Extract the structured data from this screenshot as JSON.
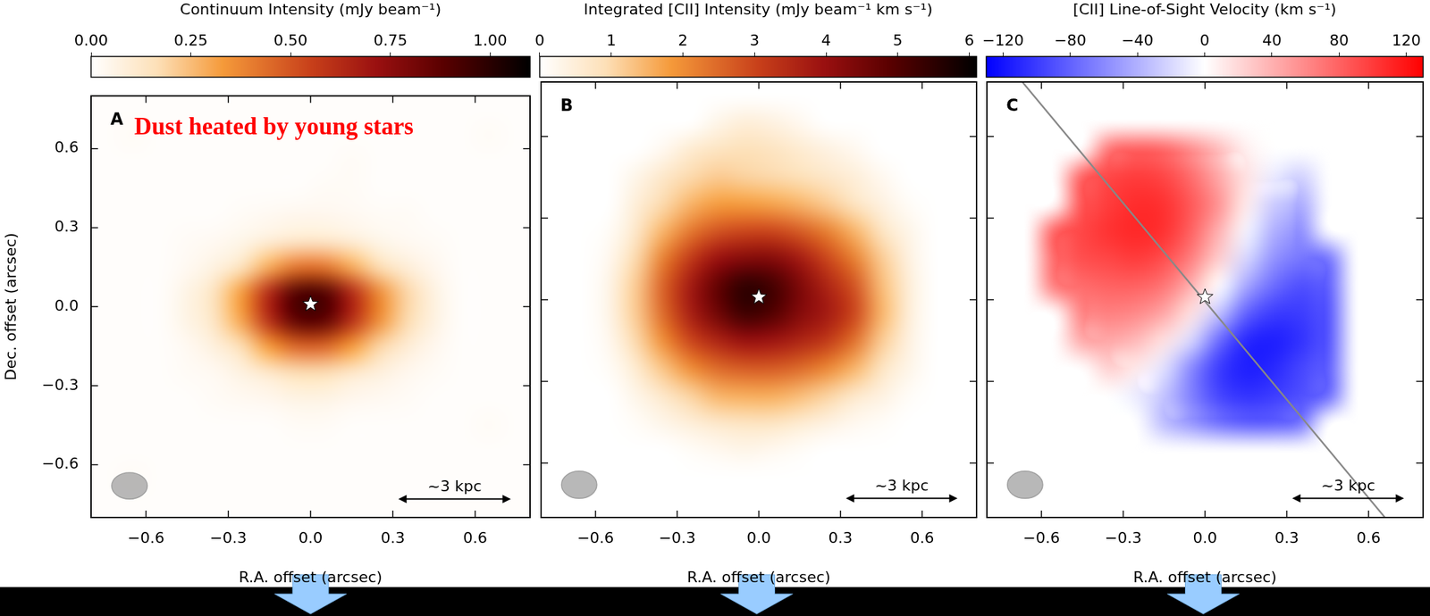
{
  "chart_data": [
    {
      "type": "heatmap",
      "panel": "A",
      "annotation": "Dust heated by young stars",
      "xlabel": "R.A. offset (arcsec)",
      "ylabel": "Dec. offset (arcsec)",
      "xlim": [
        -0.8,
        0.8
      ],
      "ylim": [
        -0.8,
        0.8
      ],
      "xticks": [
        {
          "value": -0.6,
          "label": "−0.6"
        },
        {
          "value": -0.3,
          "label": "−0.3"
        },
        {
          "value": 0,
          "label": "0.0"
        },
        0.3,
        0.6
      ],
      "yticks": [
        {
          "value": -0.6,
          "label": "−0.6"
        },
        {
          "value": -0.3,
          "label": "−0.3"
        },
        {
          "value": 0,
          "label": "0.0"
        },
        0.3,
        0.6
      ],
      "color": "afmhot_r",
      "colorbar": {
        "title": "Continuum Intensity (mJy beam⁻¹)",
        "range": [
          0,
          1.1
        ],
        "ticks": [
          {
            "value": 0,
            "label": "0.00"
          },
          {
            "value": 0.25,
            "label": "0.25"
          },
          {
            "value": 0.5,
            "label": "0.50"
          },
          {
            "value": 0.75,
            "label": "0.75"
          },
          {
            "value": 1,
            "label": "1.00"
          }
        ]
      },
      "x": [
        -0.75,
        -0.65,
        -0.55,
        -0.45,
        -0.35,
        -0.25,
        -0.15,
        -0.05,
        0.05,
        0.15,
        0.25,
        0.35,
        0.45,
        0.55,
        0.65,
        0.75
      ],
      "y": [
        0.75,
        0.65,
        0.55,
        0.45,
        0.35,
        0.25,
        0.15,
        0.05,
        -0.05,
        -0.15,
        -0.25,
        -0.35,
        -0.45,
        -0.55,
        -0.65,
        -0.75
      ],
      "values": [
        [
          0.01,
          0.01,
          0.01,
          0.01,
          0.01,
          0.01,
          0.01,
          0.01,
          0.01,
          0.01,
          0.01,
          0.01,
          0.01,
          0.01,
          0.01,
          0.01
        ],
        [
          0.01,
          0.02,
          0.01,
          0.01,
          0.01,
          0.01,
          0.01,
          0.01,
          0.01,
          0.01,
          0.01,
          0.01,
          0.01,
          0.01,
          0.02,
          0.01
        ],
        [
          0.01,
          0.01,
          0.01,
          0.01,
          0.01,
          0.01,
          0.01,
          0.01,
          0.01,
          0.02,
          0.01,
          0.01,
          0.01,
          0.01,
          0.01,
          0.01
        ],
        [
          0.01,
          0.01,
          0.01,
          0.01,
          0.01,
          0.01,
          0.01,
          0.01,
          0.02,
          0.02,
          0.01,
          0.01,
          0.01,
          0.01,
          0.01,
          0.01
        ],
        [
          0.01,
          0.01,
          0.01,
          0.01,
          0.01,
          0.02,
          0.03,
          0.04,
          0.04,
          0.03,
          0.02,
          0.02,
          0.01,
          0.01,
          0.01,
          0.01
        ],
        [
          0.01,
          0.01,
          0.01,
          0.02,
          0.03,
          0.05,
          0.09,
          0.12,
          0.12,
          0.09,
          0.05,
          0.03,
          0.02,
          0.01,
          0.01,
          0.01
        ],
        [
          0.01,
          0.01,
          0.01,
          0.03,
          0.07,
          0.15,
          0.29,
          0.42,
          0.42,
          0.29,
          0.17,
          0.09,
          0.04,
          0.01,
          0.01,
          0.01
        ],
        [
          0.01,
          0.01,
          0.01,
          0.06,
          0.15,
          0.33,
          0.64,
          0.91,
          0.91,
          0.64,
          0.37,
          0.19,
          0.07,
          0.01,
          0.01,
          0.01
        ],
        [
          0.01,
          0.01,
          0.01,
          0.06,
          0.14,
          0.31,
          0.62,
          0.88,
          0.88,
          0.62,
          0.36,
          0.18,
          0.07,
          0.01,
          0.01,
          0.01
        ],
        [
          0.01,
          0.01,
          0.01,
          0.03,
          0.08,
          0.17,
          0.33,
          0.46,
          0.46,
          0.33,
          0.19,
          0.1,
          0.04,
          0.01,
          0.01,
          0.01
        ],
        [
          0.01,
          0.01,
          0.01,
          0.02,
          0.03,
          0.07,
          0.12,
          0.17,
          0.17,
          0.12,
          0.08,
          0.04,
          0.02,
          0.01,
          0.01,
          0.01
        ],
        [
          0.01,
          0.01,
          0.01,
          0.01,
          0.02,
          0.03,
          0.04,
          0.06,
          0.06,
          0.04,
          0.03,
          0.02,
          0.01,
          0.01,
          0.01,
          0.01
        ],
        [
          0.01,
          0.01,
          0.01,
          0.01,
          0.01,
          0.01,
          0.01,
          0.02,
          0.02,
          0.01,
          0.01,
          0.01,
          0.01,
          0.01,
          0.02,
          0.01
        ],
        [
          0.01,
          0.01,
          0.01,
          0.01,
          0.01,
          0.01,
          0.01,
          0.01,
          0.01,
          0.01,
          0.01,
          0.01,
          0.01,
          0.01,
          0.01,
          0.01
        ],
        [
          0.01,
          0.02,
          0.01,
          0.01,
          0.01,
          0.01,
          0.01,
          0.01,
          0.01,
          0.01,
          0.01,
          0.01,
          0.01,
          0.01,
          0.01,
          0.01
        ],
        [
          0.01,
          0.01,
          0.01,
          0.01,
          0.01,
          0.01,
          0.01,
          0.01,
          0.01,
          0.01,
          0.01,
          0.01,
          0.01,
          0.01,
          0.01,
          0.01
        ]
      ],
      "marker": "star",
      "source_position": [
        0.0,
        0.01
      ],
      "beam": {
        "x": -0.66,
        "y": -0.68,
        "major": 0.13,
        "minor": 0.1
      },
      "scale_bar": {
        "label": "~3 kpc",
        "x": [
          0.32,
          0.73
        ],
        "y": -0.73
      }
    },
    {
      "type": "heatmap",
      "panel": "B",
      "xlabel": "R.A. offset (arcsec)",
      "xlim": [
        -0.8,
        0.8
      ],
      "ylim": [
        -0.8,
        0.8
      ],
      "xticks": [
        {
          "value": -0.6,
          "label": "−0.6"
        },
        {
          "value": -0.3,
          "label": "−0.3"
        },
        {
          "value": 0,
          "label": "0.0"
        },
        0.3,
        0.6
      ],
      "yticks": [
        -0.6,
        -0.3,
        0,
        0.3,
        0.6
      ],
      "tick_labels": "x",
      "color": "afmhot_r",
      "colorbar": {
        "title": "Integrated [CII] Intensity (mJy beam⁻¹ km s⁻¹)",
        "range": [
          0,
          6.1
        ],
        "ticks": [
          0,
          1,
          2,
          3,
          4,
          5,
          6
        ]
      },
      "x": [
        -0.75,
        -0.65,
        -0.55,
        -0.45,
        -0.35,
        -0.25,
        -0.15,
        -0.05,
        0.05,
        0.15,
        0.25,
        0.35,
        0.45,
        0.55,
        0.65,
        0.75
      ],
      "y": [
        0.75,
        0.65,
        0.55,
        0.45,
        0.35,
        0.25,
        0.15,
        0.05,
        -0.05,
        -0.15,
        -0.25,
        -0.35,
        -0.45,
        -0.55,
        -0.65,
        -0.75
      ],
      "values": [
        [
          0,
          0,
          0,
          0,
          0,
          0,
          0,
          0,
          0,
          0,
          0,
          0,
          0,
          0,
          0,
          0
        ],
        [
          0,
          0,
          0,
          0,
          0,
          0,
          0.3,
          0.5,
          0.4,
          0.2,
          0,
          0,
          0,
          0,
          0,
          0
        ],
        [
          0,
          0,
          0,
          0,
          0.2,
          0.6,
          0.8,
          0.9,
          0.8,
          0.6,
          0.4,
          0.2,
          0,
          0,
          0,
          0
        ],
        [
          0,
          0,
          0,
          0.3,
          0.7,
          1.0,
          1.2,
          1.1,
          1.0,
          0.9,
          0.7,
          0.5,
          0.2,
          0,
          0,
          0
        ],
        [
          0,
          0,
          0,
          0.5,
          1.0,
          1.5,
          1.8,
          1.8,
          1.7,
          1.5,
          1.2,
          0.8,
          0.4,
          0.1,
          0,
          0
        ],
        [
          0,
          0,
          0.1,
          0.7,
          1.5,
          2.3,
          2.8,
          3.0,
          3.0,
          2.7,
          2.2,
          1.5,
          0.8,
          0.3,
          0,
          0
        ],
        [
          0,
          0,
          0.2,
          1.0,
          2.2,
          3.2,
          4.0,
          4.3,
          4.3,
          3.8,
          3.0,
          2.2,
          1.2,
          0.4,
          0,
          0
        ],
        [
          0,
          0,
          0.3,
          1.2,
          2.6,
          3.8,
          4.8,
          5.5,
          5.2,
          4.4,
          3.6,
          2.8,
          1.4,
          0.5,
          0,
          0
        ],
        [
          0,
          0,
          0.3,
          1.2,
          2.5,
          3.7,
          4.6,
          5.3,
          5.0,
          4.3,
          3.8,
          3.0,
          1.5,
          0.5,
          0,
          0
        ],
        [
          0,
          0,
          0.2,
          1.0,
          2.0,
          3.0,
          3.6,
          4.0,
          3.9,
          3.6,
          3.2,
          2.4,
          1.2,
          0.4,
          0,
          0
        ],
        [
          0,
          0,
          0.1,
          0.6,
          1.3,
          2.0,
          2.5,
          2.7,
          2.7,
          2.5,
          2.1,
          1.5,
          0.8,
          0.3,
          0,
          0
        ],
        [
          0,
          0,
          0,
          0.3,
          0.7,
          1.1,
          1.5,
          1.6,
          1.6,
          1.4,
          1.1,
          0.7,
          0.4,
          0.1,
          0,
          0
        ],
        [
          0,
          0,
          0,
          0.1,
          0.3,
          0.5,
          0.7,
          0.8,
          0.8,
          0.6,
          0.4,
          0.2,
          0.1,
          0,
          0,
          0
        ],
        [
          0,
          0,
          0,
          0,
          0,
          0.1,
          0.2,
          0.3,
          0.2,
          0.1,
          0,
          0,
          0,
          0,
          0,
          0
        ],
        [
          0,
          0,
          0,
          0,
          0,
          0,
          0,
          0,
          0,
          0,
          0,
          0,
          0,
          0,
          0,
          0
        ],
        [
          0,
          0,
          0,
          0,
          0,
          0,
          0,
          0,
          0,
          0,
          0,
          0,
          0,
          0,
          0,
          0
        ]
      ],
      "marker": "star",
      "source_position": [
        0.0,
        0.01
      ],
      "beam": {
        "x": -0.66,
        "y": -0.68,
        "major": 0.13,
        "minor": 0.1
      },
      "scale_bar": {
        "label": "~3 kpc",
        "x": [
          0.32,
          0.73
        ],
        "y": -0.73
      }
    },
    {
      "type": "heatmap",
      "panel": "C",
      "xlabel": "R.A. offset (arcsec)",
      "xlim": [
        -0.8,
        0.8
      ],
      "ylim": [
        -0.8,
        0.8
      ],
      "xticks": [
        {
          "value": -0.6,
          "label": "−0.6"
        },
        {
          "value": -0.3,
          "label": "−0.3"
        },
        {
          "value": 0,
          "label": "0.0"
        },
        0.3,
        0.6
      ],
      "yticks": [
        -0.6,
        -0.3,
        0,
        0.3,
        0.6
      ],
      "tick_labels": "x",
      "color": "bwr",
      "colorbar": {
        "title": "[CII] Line-of-Sight Velocity (km s⁻¹)",
        "range": [
          -130,
          130
        ],
        "ticks": [
          {
            "value": -120,
            "label": "−120"
          },
          {
            "value": -80,
            "label": "−80"
          },
          {
            "value": -40,
            "label": "−40"
          },
          0,
          40,
          80,
          120
        ]
      },
      "x": [
        -0.75,
        -0.65,
        -0.55,
        -0.45,
        -0.35,
        -0.25,
        -0.15,
        -0.05,
        0.05,
        0.15,
        0.25,
        0.35,
        0.45,
        0.55,
        0.65,
        0.75
      ],
      "y": [
        0.75,
        0.65,
        0.55,
        0.45,
        0.35,
        0.25,
        0.15,
        0.05,
        -0.05,
        -0.15,
        -0.25,
        -0.35,
        -0.45,
        -0.55,
        -0.65,
        -0.75
      ],
      "values": [
        [
          null,
          null,
          null,
          null,
          null,
          null,
          null,
          null,
          null,
          null,
          null,
          null,
          null,
          null,
          null,
          null
        ],
        [
          null,
          null,
          null,
          null,
          null,
          null,
          null,
          null,
          null,
          null,
          null,
          null,
          null,
          null,
          null,
          null
        ],
        [
          null,
          null,
          null,
          null,
          75,
          85,
          80,
          60,
          35,
          8,
          null,
          null,
          null,
          null,
          null,
          null
        ],
        [
          null,
          null,
          null,
          85,
          95,
          100,
          95,
          75,
          45,
          15,
          -10,
          -25,
          null,
          null,
          null,
          null
        ],
        [
          null,
          null,
          null,
          90,
          100,
          108,
          105,
          85,
          55,
          10,
          -25,
          -45,
          null,
          null,
          null,
          null
        ],
        [
          null,
          null,
          85,
          95,
          105,
          110,
          105,
          80,
          40,
          -5,
          -40,
          -60,
          null,
          null,
          null,
          null
        ],
        [
          null,
          null,
          80,
          90,
          95,
          100,
          90,
          65,
          25,
          -20,
          -55,
          -70,
          -75,
          null,
          null,
          null
        ],
        [
          null,
          null,
          70,
          75,
          80,
          80,
          70,
          40,
          0,
          -45,
          -75,
          -90,
          -85,
          null,
          null,
          null
        ],
        [
          null,
          null,
          null,
          65,
          65,
          60,
          45,
          15,
          -30,
          -80,
          -100,
          -100,
          -90,
          null,
          null,
          null
        ],
        [
          null,
          null,
          null,
          45,
          45,
          35,
          15,
          -20,
          -75,
          -110,
          -115,
          -105,
          -90,
          null,
          null,
          null
        ],
        [
          null,
          null,
          null,
          null,
          25,
          10,
          -15,
          -60,
          -100,
          -115,
          -110,
          -95,
          -85,
          null,
          null,
          null
        ],
        [
          null,
          null,
          null,
          null,
          null,
          -10,
          -30,
          -65,
          -95,
          -105,
          -100,
          -90,
          -80,
          null,
          null,
          null
        ],
        [
          null,
          null,
          null,
          null,
          null,
          null,
          -35,
          -55,
          -75,
          -85,
          -85,
          -75,
          null,
          null,
          null,
          null
        ],
        [
          null,
          null,
          null,
          null,
          null,
          null,
          null,
          null,
          null,
          null,
          null,
          null,
          null,
          null,
          null,
          null
        ],
        [
          null,
          null,
          null,
          null,
          null,
          null,
          null,
          null,
          null,
          null,
          null,
          null,
          null,
          null,
          null,
          null
        ],
        [
          null,
          null,
          null,
          null,
          null,
          null,
          null,
          null,
          null,
          null,
          null,
          null,
          null,
          null,
          null,
          null
        ]
      ],
      "marker": "star",
      "source_position": [
        0.0,
        0.01
      ],
      "major_axis": {
        "x": [
          -0.67,
          0.66
        ],
        "y": [
          0.8,
          -0.8
        ]
      },
      "beam": {
        "x": -0.66,
        "y": -0.68,
        "major": 0.13,
        "minor": 0.1
      },
      "scale_bar": {
        "label": "~3 kpc",
        "x": [
          0.32,
          0.73
        ],
        "y": -0.73
      }
    }
  ]
}
